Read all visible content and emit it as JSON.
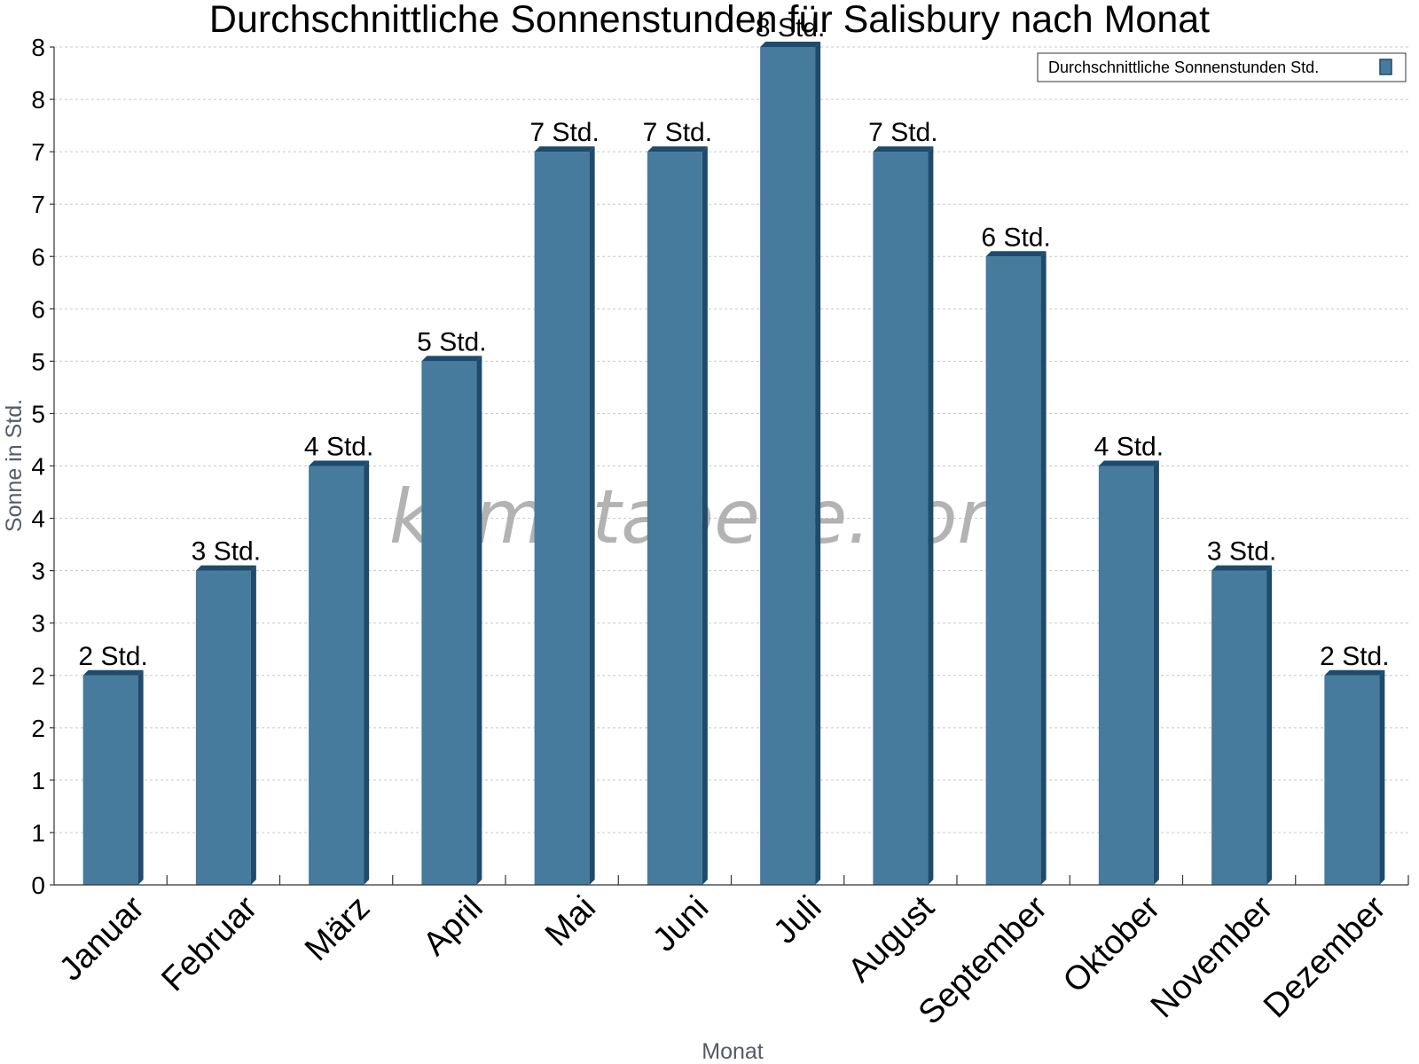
{
  "chart_data": {
    "type": "bar",
    "title": "Durchschnittliche Sonnenstunden für Salisbury nach Monat",
    "xlabel": "Monat",
    "ylabel": "Sonne in Std.",
    "categories": [
      "Januar",
      "Februar",
      "März",
      "April",
      "Mai",
      "Juni",
      "Juli",
      "August",
      "September",
      "Oktober",
      "November",
      "Dezember"
    ],
    "series": [
      {
        "name": "Durchschnittliche Sonnenstunden Std.",
        "values": [
          2,
          3,
          4,
          5,
          7,
          7,
          8,
          7,
          6,
          4,
          3,
          2
        ],
        "data_labels": [
          "2 Std.",
          "3 Std.",
          "4 Std.",
          "5 Std.",
          "7 Std.",
          "7 Std.",
          "8 Std.",
          "7 Std.",
          "6 Std.",
          "4 Std.",
          "3 Std.",
          "2 Std."
        ],
        "color": "#467b9e",
        "edge_color": "#1e4b6b"
      }
    ],
    "ylim": [
      0,
      8
    ],
    "y_tick_values": [
      0,
      0.5,
      1,
      1.5,
      2,
      2.5,
      3,
      3.5,
      4,
      4.5,
      5,
      5.5,
      6,
      6.5,
      7,
      7.5,
      8
    ],
    "y_tick_labels": [
      "0",
      "1",
      "1",
      "2",
      "2",
      "3",
      "3",
      "4",
      "4",
      "5",
      "5",
      "6",
      "6",
      "7",
      "7",
      "8",
      "8"
    ],
    "grid": true,
    "legend_position": "top-right"
  },
  "watermark": "klimatabelle.com"
}
